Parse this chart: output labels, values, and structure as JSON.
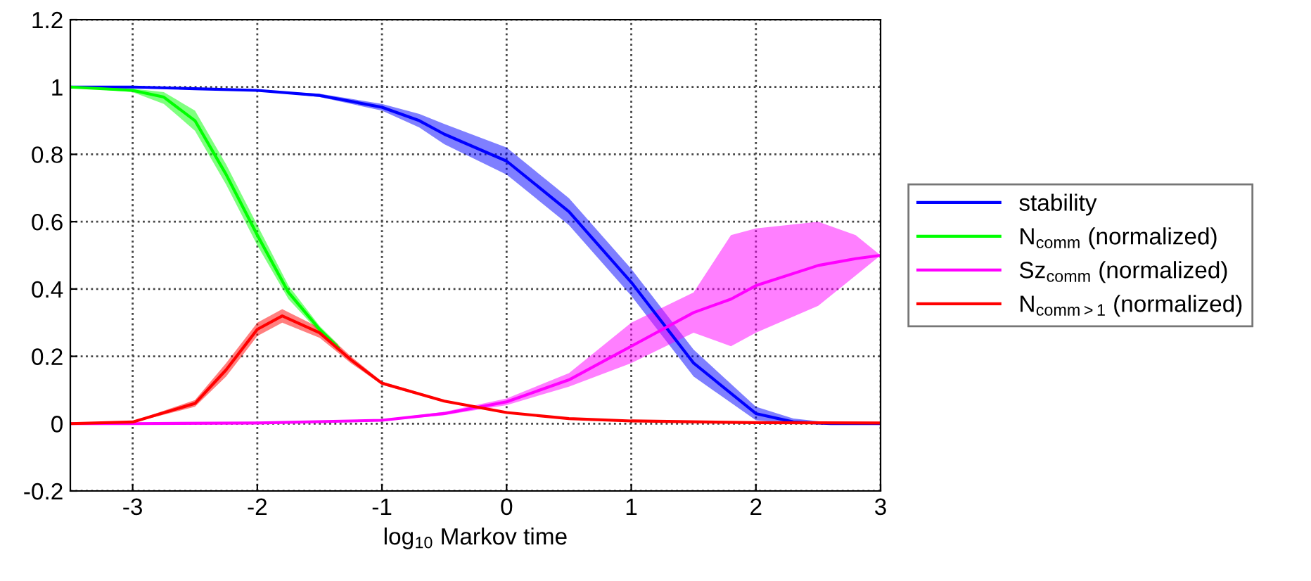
{
  "chart_data": {
    "type": "line",
    "xlabel": "log$_{10}$ Markov time",
    "xlim": [
      -3.5,
      3
    ],
    "xticks": [
      -3,
      -2,
      -1,
      0,
      1,
      2,
      3
    ],
    "ylim": [
      -0.2,
      1.2
    ],
    "yticks": [
      -0.2,
      0,
      0.2,
      0.4,
      0.6,
      0.8,
      1,
      1.2
    ],
    "grid": true,
    "legend": "right",
    "line_style": "solid",
    "marker": "none",
    "series": [
      {
        "name": "stability",
        "color": "#0000ff",
        "x": [
          -3.5,
          -3,
          -2.5,
          -2,
          -1.5,
          -1,
          -0.7,
          -0.5,
          0,
          0.5,
          1,
          1.5,
          2,
          2.3,
          2.6,
          3
        ],
        "values": [
          1,
          1,
          0.995,
          0.99,
          0.975,
          0.94,
          0.9,
          0.86,
          0.78,
          0.63,
          0.42,
          0.18,
          0.03,
          0.005,
          0,
          0
        ],
        "lower": [
          1,
          1,
          0.995,
          0.99,
          0.97,
          0.93,
          0.88,
          0.83,
          0.74,
          0.59,
          0.38,
          0.14,
          0.01,
          0,
          0,
          0
        ],
        "upper": [
          1,
          1,
          0.995,
          0.99,
          0.98,
          0.95,
          0.92,
          0.89,
          0.82,
          0.67,
          0.46,
          0.22,
          0.05,
          0.015,
          0.003,
          0
        ]
      },
      {
        "name": "N$_{comm}$ (normalized)",
        "color": "#00ff00",
        "x": [
          -3.5,
          -3,
          -2.75,
          -2.5,
          -2.25,
          -2,
          -1.75,
          -1.5,
          -1.35
        ],
        "values": [
          1,
          0.99,
          0.97,
          0.9,
          0.74,
          0.56,
          0.39,
          0.28,
          0.225
        ],
        "lower": [
          1,
          0.985,
          0.95,
          0.87,
          0.71,
          0.53,
          0.37,
          0.27,
          0.215
        ],
        "upper": [
          1,
          0.995,
          0.985,
          0.93,
          0.77,
          0.59,
          0.41,
          0.29,
          0.235
        ]
      },
      {
        "name": "Sz$_{comm}$ (normalized)",
        "color": "#ff00ff",
        "x": [
          -3.5,
          -3,
          -2,
          -1,
          -0.5,
          0,
          0.5,
          1,
          1.5,
          1.8,
          2,
          2.5,
          2.8,
          3
        ],
        "values": [
          0,
          0,
          0.002,
          0.01,
          0.03,
          0.065,
          0.13,
          0.23,
          0.33,
          0.37,
          0.41,
          0.47,
          0.49,
          0.5
        ],
        "lower": [
          0,
          0,
          0.002,
          0.008,
          0.025,
          0.055,
          0.11,
          0.18,
          0.27,
          0.23,
          0.27,
          0.35,
          0.44,
          0.5
        ],
        "upper": [
          0,
          0,
          0.002,
          0.012,
          0.035,
          0.075,
          0.15,
          0.3,
          0.39,
          0.56,
          0.58,
          0.6,
          0.56,
          0.5
        ]
      },
      {
        "name": "N$_{comm>1}$ (normalized)",
        "color": "#ff0000",
        "x": [
          -3.5,
          -3,
          -2.5,
          -2.25,
          -2,
          -1.8,
          -1.5,
          -1.25,
          -1,
          -0.5,
          0,
          0.5,
          1,
          2,
          3
        ],
        "values": [
          0,
          0.005,
          0.06,
          0.16,
          0.28,
          0.32,
          0.27,
          0.19,
          0.12,
          0.067,
          0.033,
          0.015,
          0.008,
          0.003,
          0.002
        ],
        "lower": [
          0,
          0.003,
          0.05,
          0.14,
          0.26,
          0.3,
          0.255,
          0.18,
          0.115,
          0.064,
          0.031,
          0.014,
          0.007,
          0.002,
          0.001
        ],
        "upper": [
          0,
          0.007,
          0.07,
          0.18,
          0.3,
          0.34,
          0.285,
          0.2,
          0.125,
          0.07,
          0.035,
          0.016,
          0.009,
          0.004,
          0.003
        ]
      }
    ]
  }
}
